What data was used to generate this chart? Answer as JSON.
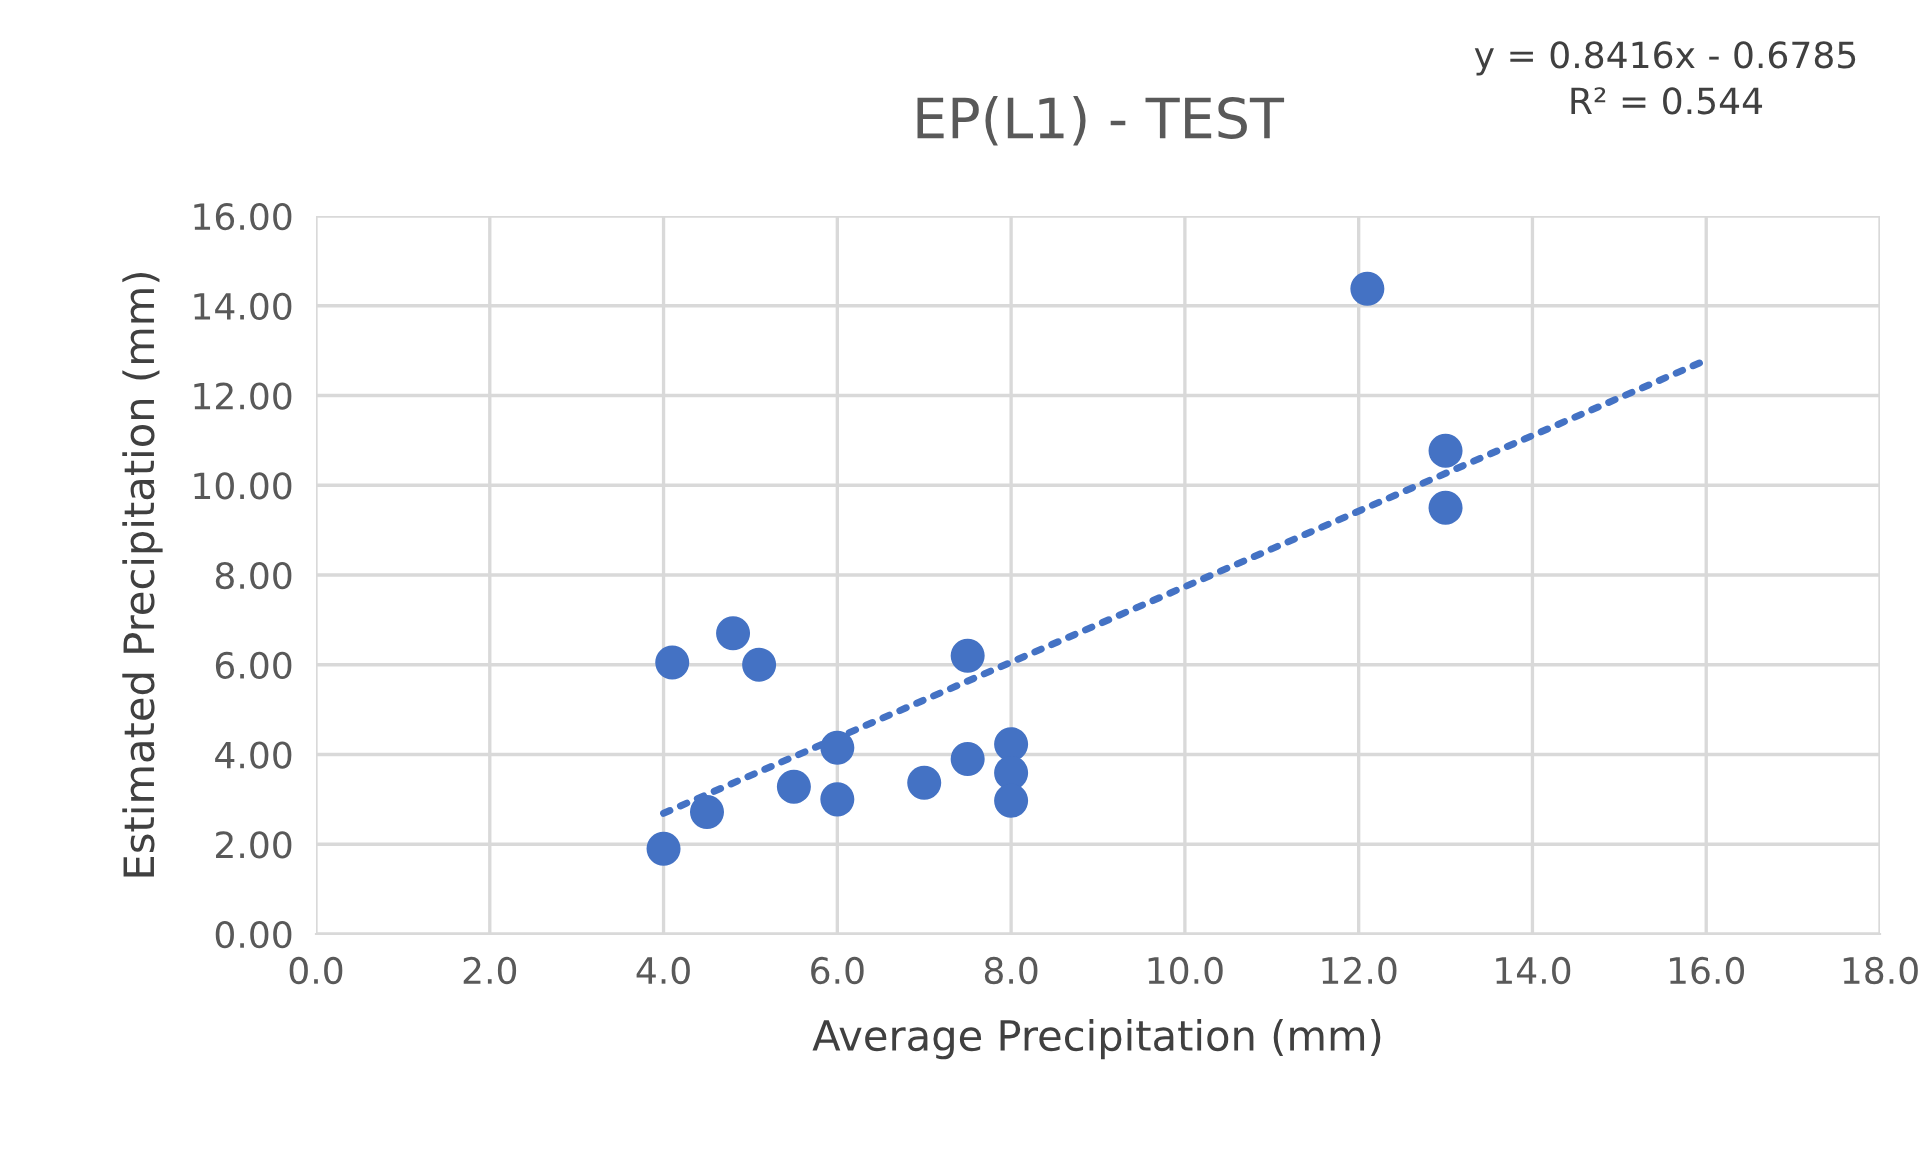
{
  "chart_data": {
    "type": "scatter",
    "title": "EP(L1) - TEST",
    "xlabel": "Average Precipitation (mm)",
    "ylabel": "Estimated Precipitation (mm)",
    "annotations": [
      "y = 0.8416x - 0.6785\nR² = 0.544"
    ],
    "series": [
      {
        "color": "#4472c4",
        "marker": "circle",
        "x": [
          4.0,
          4.1,
          4.8,
          5.1,
          4.5,
          5.5,
          6.0,
          6.0,
          7.0,
          7.5,
          7.5,
          8.0,
          8.0,
          8.0,
          12.1,
          13.0,
          13.0
        ],
        "values": [
          1.9,
          6.05,
          6.7,
          6.0,
          2.72,
          3.28,
          4.15,
          3.0,
          3.37,
          6.2,
          3.9,
          4.23,
          3.59,
          2.97,
          14.38,
          10.77,
          9.5
        ]
      },
      {
        "type": "line",
        "color": "#4472c4",
        "line_style": "dotted",
        "x": [
          4.0,
          16.0
        ],
        "values": [
          2.69,
          12.79
        ]
      }
    ],
    "xlim": [
      0,
      18
    ],
    "xticks": [
      {
        "value": 0,
        "label": "0.0"
      },
      {
        "value": 2,
        "label": "2.0"
      },
      {
        "value": 4,
        "label": "4.0"
      },
      {
        "value": 6,
        "label": "6.0"
      },
      {
        "value": 8,
        "label": "8.0"
      },
      {
        "value": 10,
        "label": "10.0"
      },
      {
        "value": 12,
        "label": "12.0"
      },
      {
        "value": 14,
        "label": "14.0"
      },
      {
        "value": 16,
        "label": "16.0"
      },
      {
        "value": 18,
        "label": "18.0"
      }
    ],
    "ylim": [
      0,
      16
    ],
    "yticks": [
      {
        "value": 0,
        "label": "0.00"
      },
      {
        "value": 2,
        "label": "2.00"
      },
      {
        "value": 4,
        "label": "4.00"
      },
      {
        "value": 6,
        "label": "6.00"
      },
      {
        "value": 8,
        "label": "8.00"
      },
      {
        "value": 10,
        "label": "10.00"
      },
      {
        "value": 12,
        "label": "12.00"
      },
      {
        "value": 14,
        "label": "14.00"
      },
      {
        "value": 16,
        "label": "16.00"
      }
    ],
    "grid": true,
    "legend": false
  }
}
